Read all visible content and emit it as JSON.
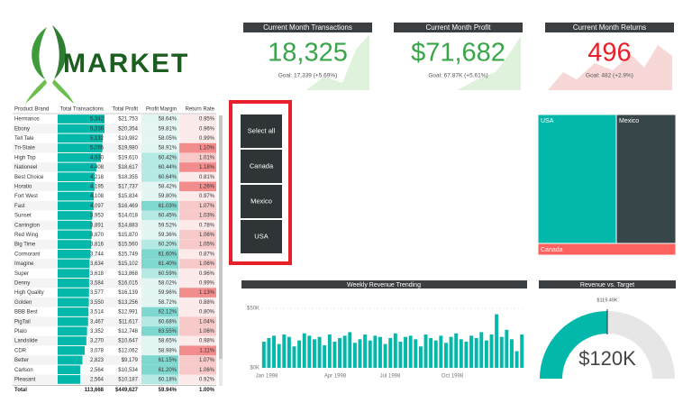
{
  "logo": {
    "text": "MARKET"
  },
  "kpis": [
    {
      "title": "Current Month Transactions",
      "value": "18,325",
      "goal": "Goal: 17,339 (+5.69%)",
      "status": "good"
    },
    {
      "title": "Current Month Profit",
      "value": "$71,682",
      "goal": "Goal: 67.87K (+5.61%)",
      "status": "good"
    },
    {
      "title": "Current Month Returns",
      "value": "496",
      "goal": "Goal: 482 (+2.9%)",
      "status": "bad"
    }
  ],
  "table": {
    "columns": [
      "Product Brand",
      "Total Transactions",
      "Total Profit",
      "Profit Margin",
      "Return Rate"
    ],
    "rows": [
      [
        "Hermanos",
        "5,342",
        "$21,753",
        "58.64%",
        "0.95%"
      ],
      [
        "Ebony",
        "5,336",
        "$20,354",
        "59.81%",
        "0.96%"
      ],
      [
        "Tell Tale",
        "5,132",
        "$19,982",
        "58.05%",
        "0.99%"
      ],
      [
        "Tri-State",
        "5,096",
        "$19,980",
        "58.91%",
        "1.10%"
      ],
      [
        "High Top",
        "4,930",
        "$19,610",
        "60.42%",
        "1.01%"
      ],
      [
        "Nationeel",
        "4,408",
        "$18,617",
        "60.44%",
        "1.18%"
      ],
      [
        "Best Choice",
        "4,218",
        "$18,355",
        "60.64%",
        "0.81%"
      ],
      [
        "Horatio",
        "4,195",
        "$17,737",
        "58.42%",
        "1.26%"
      ],
      [
        "Fort West",
        "4,108",
        "$15,834",
        "59.80%",
        "0.97%"
      ],
      [
        "Fast",
        "4,097",
        "$16,469",
        "61.03%",
        "1.07%"
      ],
      [
        "Sunset",
        "3,953",
        "$14,018",
        "60.45%",
        "1.03%"
      ],
      [
        "Carrington",
        "3,891",
        "$14,883",
        "59.52%",
        "0.78%"
      ],
      [
        "Red Wing",
        "3,870",
        "$15,870",
        "59.36%",
        "1.06%"
      ],
      [
        "Big Time",
        "3,816",
        "$15,560",
        "60.20%",
        "1.05%"
      ],
      [
        "Cormorant",
        "3,744",
        "$15,749",
        "61.60%",
        "0.87%"
      ],
      [
        "Imagine",
        "3,634",
        "$15,102",
        "61.40%",
        "1.06%"
      ],
      [
        "Super",
        "3,618",
        "$13,868",
        "60.59%",
        "0.96%"
      ],
      [
        "Denny",
        "3,584",
        "$16,015",
        "58.02%",
        "0.99%"
      ],
      [
        "High Quality",
        "3,577",
        "$16,139",
        "59.96%",
        "1.13%"
      ],
      [
        "Golden",
        "3,550",
        "$13,256",
        "58.72%",
        "0.88%"
      ],
      [
        "BBB Best",
        "3,514",
        "$12,991",
        "62.12%",
        "0.80%"
      ],
      [
        "PigTail",
        "3,467",
        "$11,617",
        "60.68%",
        "1.04%"
      ],
      [
        "Plato",
        "3,352",
        "$12,748",
        "63.55%",
        "1.06%"
      ],
      [
        "Landslide",
        "3,270",
        "$10,647",
        "58.65%",
        "0.98%"
      ],
      [
        "CDR",
        "3,078",
        "$12,062",
        "58.98%",
        "1.11%"
      ],
      [
        "Better",
        "2,823",
        "$9,179",
        "61.15%",
        "1.07%"
      ],
      [
        "Carlson",
        "2,564",
        "$10,534",
        "61.20%",
        "1.06%"
      ],
      [
        "Pleasant",
        "2,564",
        "$10,187",
        "60.18%",
        "0.92%"
      ]
    ],
    "total": [
      "Total",
      "113,668",
      "$449,627",
      "59.94%",
      "1.00%"
    ]
  },
  "slicer": {
    "items": [
      "Select all",
      "Canada",
      "Mexico",
      "USA"
    ]
  },
  "treemap": {
    "items": [
      "USA",
      "Mexico",
      "Canada"
    ]
  },
  "chart_data": {
    "type": "bar",
    "title": "Weekly Revenue Trending",
    "color": "#01b8aa",
    "x_labels": [
      "Jan 1998",
      "Apr 1998",
      "Jul 1998",
      "Oct 1998"
    ],
    "values": [
      22000,
      25000,
      27000,
      20000,
      28000,
      26000,
      18000,
      23000,
      29000,
      27000,
      24000,
      26000,
      19000,
      28000,
      22000,
      25000,
      27000,
      30000,
      21000,
      24000,
      28000,
      23000,
      27000,
      26000,
      20000,
      25000,
      29000,
      22000,
      26000,
      27000,
      24000,
      18000,
      28000,
      25000,
      23000,
      27000,
      21000,
      26000,
      29000,
      24000,
      22000,
      27000,
      25000,
      30000,
      23000,
      28000,
      45000,
      26000,
      32000,
      24000,
      14000,
      28000
    ],
    "ylim": [
      0,
      60000
    ],
    "yticks": [
      {
        "value": 0,
        "label": "$0K"
      },
      {
        "value": 50000,
        "label": "$50K"
      }
    ]
  },
  "gauge": {
    "title": "Revenue vs. Target",
    "value": "$120K",
    "target": "$119.49K"
  }
}
